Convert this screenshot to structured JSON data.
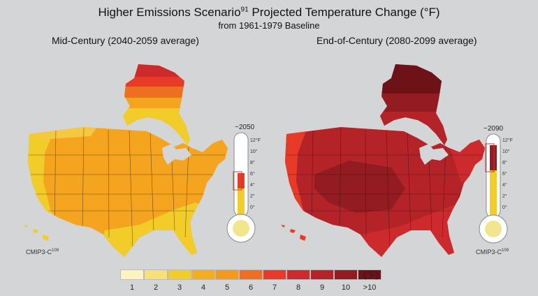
{
  "title_main": "Higher Emissions Scenario",
  "title_sup": "91",
  "title_rest": " Projected Temperature Change (°F)",
  "subtitle": "from 1961-1979 Baseline",
  "panels": {
    "left": {
      "title": "Mid-Century (2040-2059 average)",
      "year": "~2050",
      "credit": "CMIP3-C",
      "credit_sup": "109"
    },
    "right": {
      "title": "End-of-Century (2080-2099 average)",
      "year": "~2090",
      "credit": "CMIP3-C",
      "credit_sup": "109"
    }
  },
  "thermometer_scale": [
    "12°F",
    "10°",
    "8°",
    "6°",
    "4°",
    "2°",
    "0°"
  ],
  "legend": {
    "unit": "(°F)",
    "labels": [
      "1",
      "2",
      "3",
      "4",
      "5",
      "6",
      "7",
      "8",
      "9",
      "10",
      ">10"
    ],
    "colors": [
      "#fdf3bf",
      "#f7e07a",
      "#f2cc28",
      "#f4ad1e",
      "#f39a1e",
      "#ef6f22",
      "#e73a28",
      "#cc2a2c",
      "#b32328",
      "#921c22",
      "#6d1217"
    ]
  },
  "colors": {
    "mid_base": "#f4a41e",
    "mid_light": "#f2cc28",
    "mid_hot": "#ef6f22",
    "end_base": "#b32328",
    "end_light": "#cc2a2c",
    "end_dark": "#921c22",
    "end_darkest": "#6d1217"
  }
}
